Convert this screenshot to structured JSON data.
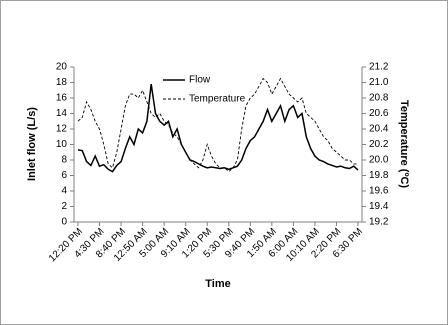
{
  "chart_data": {
    "type": "line",
    "categories": [
      "12:20 PM",
      null,
      null,
      null,
      null,
      "4:30 PM",
      null,
      null,
      null,
      null,
      "8:40 PM",
      null,
      null,
      null,
      null,
      "12:50 AM",
      null,
      null,
      null,
      null,
      "5:00 AM",
      null,
      null,
      null,
      null,
      "9:10 AM",
      null,
      null,
      null,
      null,
      "1:20 PM",
      null,
      null,
      null,
      null,
      "5:30 PM",
      null,
      null,
      null,
      null,
      "9:40 PM",
      null,
      null,
      null,
      null,
      "1:50 AM",
      null,
      null,
      null,
      null,
      "6:00 AM",
      null,
      null,
      null,
      null,
      "10:10 AM",
      null,
      null,
      null,
      null,
      "2:20 PM",
      null,
      null,
      null,
      null,
      "6:30 PM"
    ],
    "series": [
      {
        "name": "Flow",
        "color": "#000000",
        "linestyle": "solid",
        "values": [
          9.3,
          9.2,
          7.8,
          7.3,
          8.5,
          7.2,
          7.4,
          6.8,
          6.5,
          7.3,
          7.8,
          9.5,
          11,
          10,
          12,
          11.5,
          13,
          17.8,
          14,
          13,
          12.5,
          13,
          11,
          12,
          10,
          9,
          8,
          7.8,
          7.5,
          7.2,
          7,
          7.1,
          7,
          6.9,
          7,
          6.8,
          7,
          7.2,
          8,
          9.5,
          10.5,
          11,
          12,
          13,
          14.5,
          13,
          14,
          15,
          13,
          14.5,
          15,
          13.5,
          14,
          11,
          9.5,
          8.5,
          8,
          7.8,
          7.5,
          7.3,
          7.1,
          7.2,
          7,
          6.9,
          7.2,
          6.7
        ]
      },
      {
        "name": "Temperature",
        "color": "#000000",
        "linestyle": "dashed",
        "axis": "y2",
        "values": [
          20.5,
          20.55,
          20.75,
          20.65,
          20.5,
          20.4,
          20.2,
          19.95,
          19.9,
          20.1,
          20.4,
          20.7,
          20.85,
          20.85,
          20.8,
          20.9,
          20.75,
          20.6,
          20.55,
          20.6,
          20.5,
          20.45,
          20.35,
          20.3,
          20.2,
          20.1,
          20.0,
          19.95,
          19.9,
          20.0,
          20.2,
          20.05,
          19.95,
          19.9,
          19.9,
          19.85,
          19.9,
          20.0,
          20.4,
          20.7,
          20.8,
          20.85,
          20.95,
          21.05,
          21.0,
          20.85,
          20.95,
          21.05,
          20.95,
          20.85,
          20.8,
          20.75,
          20.8,
          20.6,
          20.55,
          20.5,
          20.4,
          20.3,
          20.25,
          20.15,
          20.1,
          20.05,
          20.0,
          20.0,
          19.95,
          19.95
        ]
      }
    ],
    "xlabel": "Time",
    "ylabel": "Inlet flow (L/s)",
    "y2label": "Temperature (ºC)",
    "ylim": [
      0,
      20
    ],
    "yticks": [
      0,
      2,
      4,
      6,
      8,
      10,
      12,
      14,
      16,
      18,
      20
    ],
    "y2lim": [
      19.2,
      21.2
    ],
    "y2ticks": [
      19.2,
      19.4,
      19.6,
      19.8,
      {
        "value": 20.0,
        "label": "20.0"
      },
      20.2,
      20.4,
      20.6,
      20.8,
      {
        "value": 21.0,
        "label": "21.0"
      },
      21.2
    ],
    "grid": false,
    "legend": "top"
  }
}
